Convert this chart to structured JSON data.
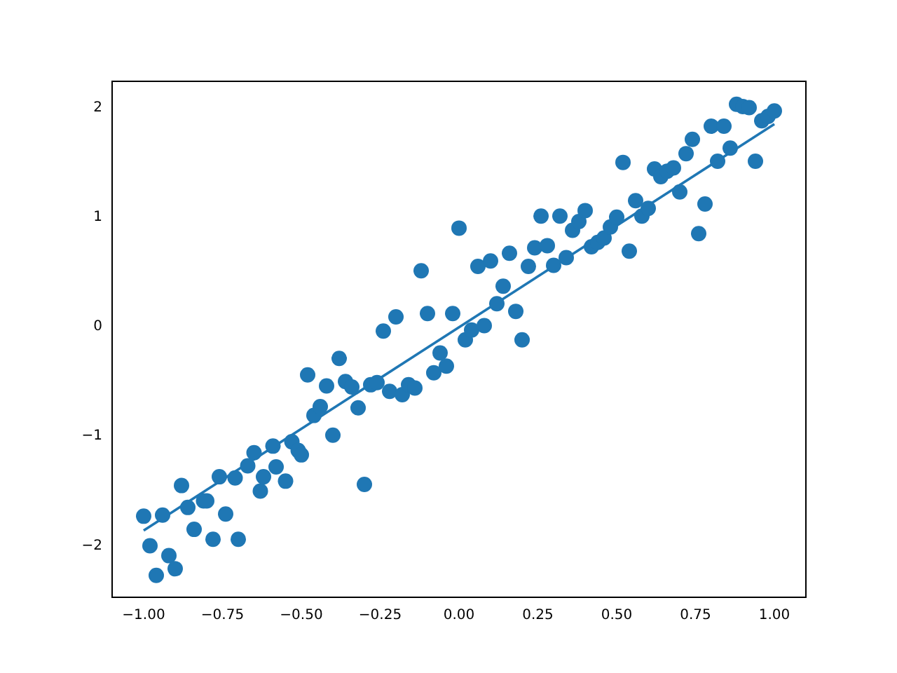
{
  "chart_data": {
    "type": "scatter",
    "xlim": [
      -1.1,
      1.1
    ],
    "ylim": [
      -2.47,
      2.24
    ],
    "xticks": [
      {
        "value": -1,
        "label": "−1.00"
      },
      {
        "value": -0.75,
        "label": "−0.75"
      },
      {
        "value": -0.5,
        "label": "−0.50"
      },
      {
        "value": -0.25,
        "label": "−0.25"
      },
      {
        "value": 0,
        "label": "0.00"
      },
      {
        "value": 0.25,
        "label": "0.25"
      },
      {
        "value": 0.5,
        "label": "0.50"
      },
      {
        "value": 0.75,
        "label": "0.75"
      },
      {
        "value": 1,
        "label": "1.00"
      }
    ],
    "yticks": [
      {
        "value": -2,
        "label": "−2"
      },
      {
        "value": -1,
        "label": "−1"
      },
      0,
      1,
      2
    ],
    "grid": false,
    "legend": false,
    "series": [
      {
        "color": "#1f77b4",
        "marker": "circle",
        "x": [
          -1.0,
          -0.98,
          -0.96,
          -0.94,
          -0.92,
          -0.9,
          -0.88,
          -0.86,
          -0.84,
          -0.81,
          -0.8,
          -0.78,
          -0.76,
          -0.74,
          -0.71,
          -0.7,
          -0.67,
          -0.65,
          -0.63,
          -0.62,
          -0.59,
          -0.58,
          -0.55,
          -0.53,
          -0.51,
          -0.5,
          -0.48,
          -0.46,
          -0.44,
          -0.42,
          -0.4,
          -0.38,
          -0.36,
          -0.34,
          -0.32,
          -0.3,
          -0.28,
          -0.26,
          -0.24,
          -0.22,
          -0.2,
          -0.18,
          -0.16,
          -0.14,
          -0.12,
          -0.1,
          -0.08,
          -0.06,
          -0.04,
          -0.02,
          0.0,
          0.02,
          0.04,
          0.06,
          0.08,
          0.1,
          0.12,
          0.14,
          0.16,
          0.18,
          0.2,
          0.22,
          0.24,
          0.26,
          0.28,
          0.3,
          0.32,
          0.34,
          0.36,
          0.38,
          0.4,
          0.42,
          0.44,
          0.46,
          0.48,
          0.5,
          0.52,
          0.54,
          0.56,
          0.58,
          0.6,
          0.62,
          0.64,
          0.66,
          0.68,
          0.7,
          0.72,
          0.74,
          0.76,
          0.78,
          0.8,
          0.82,
          0.84,
          0.86,
          0.88,
          0.9,
          0.92,
          0.94,
          0.96,
          0.98,
          1.0
        ],
        "values": [
          -1.73,
          -2.0,
          -2.27,
          -1.72,
          -2.09,
          -2.21,
          -1.45,
          -1.65,
          -1.85,
          -1.59,
          -1.59,
          -1.94,
          -1.37,
          -1.71,
          -1.38,
          -1.94,
          -1.27,
          -1.15,
          -1.5,
          -1.37,
          -1.09,
          -1.28,
          -1.41,
          -1.05,
          -1.13,
          -1.17,
          -0.44,
          -0.81,
          -0.73,
          -0.54,
          -0.99,
          -0.29,
          -0.5,
          -0.55,
          -0.74,
          -1.44,
          -0.53,
          -0.51,
          -0.04,
          -0.59,
          0.09,
          -0.62,
          -0.53,
          -0.56,
          0.51,
          0.12,
          -0.42,
          -0.24,
          -0.36,
          0.12,
          0.9,
          -0.12,
          -0.03,
          0.55,
          0.01,
          0.6,
          0.21,
          0.37,
          0.67,
          0.14,
          -0.12,
          0.55,
          0.72,
          1.01,
          0.74,
          0.56,
          1.01,
          0.63,
          0.88,
          0.96,
          1.06,
          0.73,
          0.77,
          0.81,
          0.91,
          1.0,
          1.5,
          0.69,
          1.15,
          1.01,
          1.08,
          1.44,
          1.37,
          1.42,
          1.45,
          1.23,
          1.58,
          1.71,
          0.85,
          1.12,
          1.83,
          1.51,
          1.83,
          1.63,
          2.03,
          2.01,
          2.0,
          1.51,
          1.88,
          1.92,
          1.97
        ]
      },
      {
        "type": "line",
        "color": "#1f77b4",
        "marker": "none",
        "line_style": "solid",
        "x": [
          -1,
          1
        ],
        "values": [
          -1.86,
          1.85
        ]
      }
    ]
  }
}
